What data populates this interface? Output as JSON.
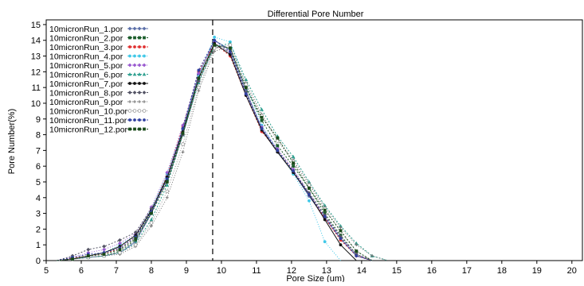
{
  "chart_data": {
    "type": "line",
    "title": "Differential Pore Number",
    "xlabel": "Pore Size (um)",
    "ylabel": "Pore Number(%)",
    "xlim": [
      5,
      20.3
    ],
    "ylim": [
      0,
      15.3
    ],
    "xticks": [
      5,
      6,
      7,
      8,
      9,
      10,
      11,
      12,
      13,
      14,
      15,
      16,
      17,
      18,
      19,
      20
    ],
    "yticks": [
      0,
      1,
      2,
      3,
      4,
      5,
      6,
      7,
      8,
      9,
      10,
      11,
      12,
      13,
      14,
      15
    ],
    "grid": false,
    "legend_position": "top-left",
    "reference_line_x": 9.75,
    "series": [
      {
        "name": "10micronRun_1.por",
        "color": "#5a6ea8",
        "marker": "diamond",
        "dash": "",
        "x": [
          5.3,
          5.75,
          6.2,
          6.65,
          7.1,
          7.55,
          8.0,
          8.45,
          8.9,
          9.35,
          9.8,
          10.25,
          10.7,
          11.15,
          11.6,
          12.05,
          12.5,
          12.95,
          13.4,
          13.85,
          14.3
        ],
        "y": [
          0,
          0.1,
          0.2,
          0.3,
          0.5,
          1.2,
          3.0,
          5.3,
          8.4,
          11.8,
          14.0,
          13.4,
          10.8,
          8.4,
          6.9,
          5.6,
          4.1,
          2.7,
          1.4,
          0.3,
          0
        ]
      },
      {
        "name": "10micronRun_2.por",
        "color": "#1a5c2a",
        "marker": "square",
        "dash": "2,2",
        "x": [
          5.3,
          5.75,
          6.2,
          6.65,
          7.1,
          7.55,
          8.0,
          8.45,
          8.9,
          9.35,
          9.8,
          10.25,
          10.7,
          11.15,
          11.6,
          12.05,
          12.5,
          12.95,
          13.4,
          13.85,
          14.3
        ],
        "y": [
          0,
          0.1,
          0.2,
          0.3,
          0.6,
          1.3,
          3.1,
          5.2,
          8.0,
          11.5,
          13.7,
          13.5,
          11.0,
          8.9,
          7.3,
          6.0,
          4.6,
          3.0,
          1.6,
          0.4,
          0
        ]
      },
      {
        "name": "10micronRun_3.por",
        "color": "#e03030",
        "marker": "circle",
        "dash": "2,2",
        "x": [
          5.3,
          5.75,
          6.2,
          6.65,
          7.1,
          7.55,
          8.0,
          8.45,
          8.9,
          9.35,
          9.8,
          10.25,
          10.7,
          11.15,
          11.6,
          12.05,
          12.5,
          12.95,
          13.4,
          13.85,
          14.3
        ],
        "y": [
          0,
          0.15,
          0.3,
          0.4,
          0.8,
          1.5,
          3.2,
          5.4,
          8.5,
          12.0,
          13.8,
          13.0,
          10.5,
          8.2,
          7.0,
          5.7,
          4.2,
          2.7,
          1.3,
          0.3,
          0
        ]
      },
      {
        "name": "10micronRun_4.por",
        "color": "#40c8e8",
        "marker": "circle",
        "dash": "1,2",
        "x": [
          5.3,
          5.75,
          6.2,
          6.65,
          7.1,
          7.55,
          8.0,
          8.45,
          8.9,
          9.35,
          9.8,
          10.25,
          10.7,
          11.15,
          11.6,
          12.05,
          12.5,
          12.95,
          13.4
        ],
        "y": [
          0,
          0.1,
          0.3,
          0.5,
          1.0,
          1.6,
          3.3,
          5.5,
          8.3,
          11.7,
          14.2,
          13.9,
          11.2,
          8.6,
          7.0,
          5.5,
          3.8,
          1.2,
          0
        ]
      },
      {
        "name": "10micronRun_5.por",
        "color": "#9a5ad0",
        "marker": "diamond",
        "dash": "1,2",
        "x": [
          5.3,
          5.75,
          6.2,
          6.65,
          7.1,
          7.55,
          8.0,
          8.45,
          8.9,
          9.35,
          9.8,
          10.25,
          10.7,
          11.15,
          11.6,
          12.05,
          12.5,
          12.95,
          13.4,
          13.85,
          14.3
        ],
        "y": [
          0,
          0.2,
          0.5,
          0.7,
          1.1,
          1.7,
          3.4,
          5.6,
          8.6,
          11.9,
          13.9,
          13.2,
          10.6,
          8.5,
          7.1,
          5.8,
          4.3,
          2.8,
          1.5,
          0.4,
          0
        ]
      },
      {
        "name": "10micronRun_6.por",
        "color": "#30a090",
        "marker": "triangle",
        "dash": "2,2",
        "x": [
          5.3,
          5.75,
          6.2,
          6.65,
          7.1,
          7.55,
          8.0,
          8.45,
          8.9,
          9.35,
          9.8,
          10.25,
          10.7,
          11.15,
          11.6,
          12.05,
          12.5,
          12.95,
          13.4,
          13.85,
          14.3,
          14.75
        ],
        "y": [
          0,
          0.1,
          0.2,
          0.3,
          0.5,
          1.1,
          2.6,
          4.8,
          8.0,
          11.3,
          13.6,
          13.8,
          11.5,
          9.6,
          7.9,
          6.6,
          5.0,
          3.5,
          2.2,
          1.1,
          0.3,
          0
        ]
      },
      {
        "name": "10micronRun_7.por",
        "color": "#111111",
        "marker": "circle",
        "dash": "",
        "x": [
          5.3,
          5.75,
          6.2,
          6.65,
          7.1,
          7.55,
          8.0,
          8.45,
          8.9,
          9.35,
          9.8,
          10.25,
          10.7,
          11.15,
          11.6,
          12.05,
          12.5,
          12.95,
          13.4,
          13.85
        ],
        "y": [
          0,
          0.1,
          0.3,
          0.5,
          0.9,
          1.6,
          3.2,
          5.3,
          8.2,
          11.6,
          13.8,
          13.1,
          10.5,
          8.3,
          6.9,
          5.6,
          4.2,
          2.6,
          1.0,
          0
        ]
      },
      {
        "name": "10micronRun_8.por",
        "color": "#555566",
        "marker": "diamond",
        "dash": "2,2",
        "x": [
          5.3,
          5.75,
          6.2,
          6.65,
          7.1,
          7.55,
          8.0,
          8.45,
          8.9,
          9.35,
          9.8,
          10.25,
          10.7,
          11.15,
          11.6,
          12.05,
          12.5,
          12.95,
          13.4,
          13.85,
          14.3
        ],
        "y": [
          0,
          0.3,
          0.7,
          0.9,
          1.3,
          1.8,
          3.3,
          5.0,
          8.0,
          11.4,
          13.6,
          13.3,
          10.7,
          8.4,
          7.0,
          5.7,
          4.3,
          2.9,
          1.5,
          0.4,
          0
        ]
      },
      {
        "name": "10micronRun_9.por",
        "color": "#777777",
        "marker": "plus",
        "dash": "1,2",
        "x": [
          5.3,
          5.75,
          6.2,
          6.65,
          7.1,
          7.55,
          8.0,
          8.45,
          8.9,
          9.35,
          9.8,
          10.25,
          10.7,
          11.15,
          11.6,
          12.05,
          12.5,
          12.95,
          13.4,
          13.85,
          14.3,
          14.75
        ],
        "y": [
          0,
          0.1,
          0.2,
          0.3,
          0.4,
          0.9,
          2.2,
          4.0,
          6.9,
          10.8,
          13.3,
          13.6,
          11.3,
          9.3,
          7.7,
          6.4,
          4.9,
          3.4,
          2.1,
          1.0,
          0.3,
          0
        ]
      },
      {
        "name": "10micronRun_10.por",
        "color": "#999999",
        "marker": "circle-open",
        "dash": "1,2",
        "x": [
          5.3,
          5.75,
          6.2,
          6.65,
          7.1,
          7.55,
          8.0,
          8.45,
          8.9,
          9.35,
          9.8,
          10.25,
          10.7,
          11.15,
          11.6,
          12.05,
          12.5,
          12.95,
          13.4,
          13.85,
          14.3
        ],
        "y": [
          0,
          0.1,
          0.2,
          0.3,
          0.5,
          1.0,
          2.4,
          4.4,
          7.4,
          11.0,
          13.5,
          13.7,
          11.2,
          9.2,
          7.6,
          6.3,
          4.8,
          3.3,
          1.8,
          0.6,
          0
        ]
      },
      {
        "name": "10micronRun_11.por",
        "color": "#3040a0",
        "marker": "circle",
        "dash": "2,2",
        "x": [
          5.3,
          5.75,
          6.2,
          6.65,
          7.1,
          7.55,
          8.0,
          8.45,
          8.9,
          9.35,
          9.8,
          10.25,
          10.7,
          11.15,
          11.6,
          12.05,
          12.5,
          12.95,
          13.4,
          13.85,
          14.3
        ],
        "y": [
          0,
          0.2,
          0.4,
          0.5,
          0.8,
          1.5,
          3.1,
          5.2,
          8.4,
          12.1,
          14.0,
          13.3,
          10.6,
          8.4,
          7.0,
          5.7,
          4.2,
          2.8,
          1.4,
          0.3,
          0
        ]
      },
      {
        "name": "10micronRun_12.por",
        "color": "#1a4a1a",
        "marker": "square",
        "dash": "2,2",
        "x": [
          5.3,
          5.75,
          6.2,
          6.65,
          7.1,
          7.55,
          8.0,
          8.45,
          8.9,
          9.35,
          9.8,
          10.25,
          10.7,
          11.15,
          11.6,
          12.05,
          12.5,
          12.95,
          13.4,
          13.85,
          14.3
        ],
        "y": [
          0,
          0.1,
          0.3,
          0.4,
          0.7,
          1.4,
          3.0,
          5.0,
          8.1,
          11.6,
          13.7,
          13.5,
          11.0,
          9.1,
          7.8,
          6.2,
          4.6,
          3.2,
          1.9,
          0.6,
          0
        ]
      }
    ]
  }
}
